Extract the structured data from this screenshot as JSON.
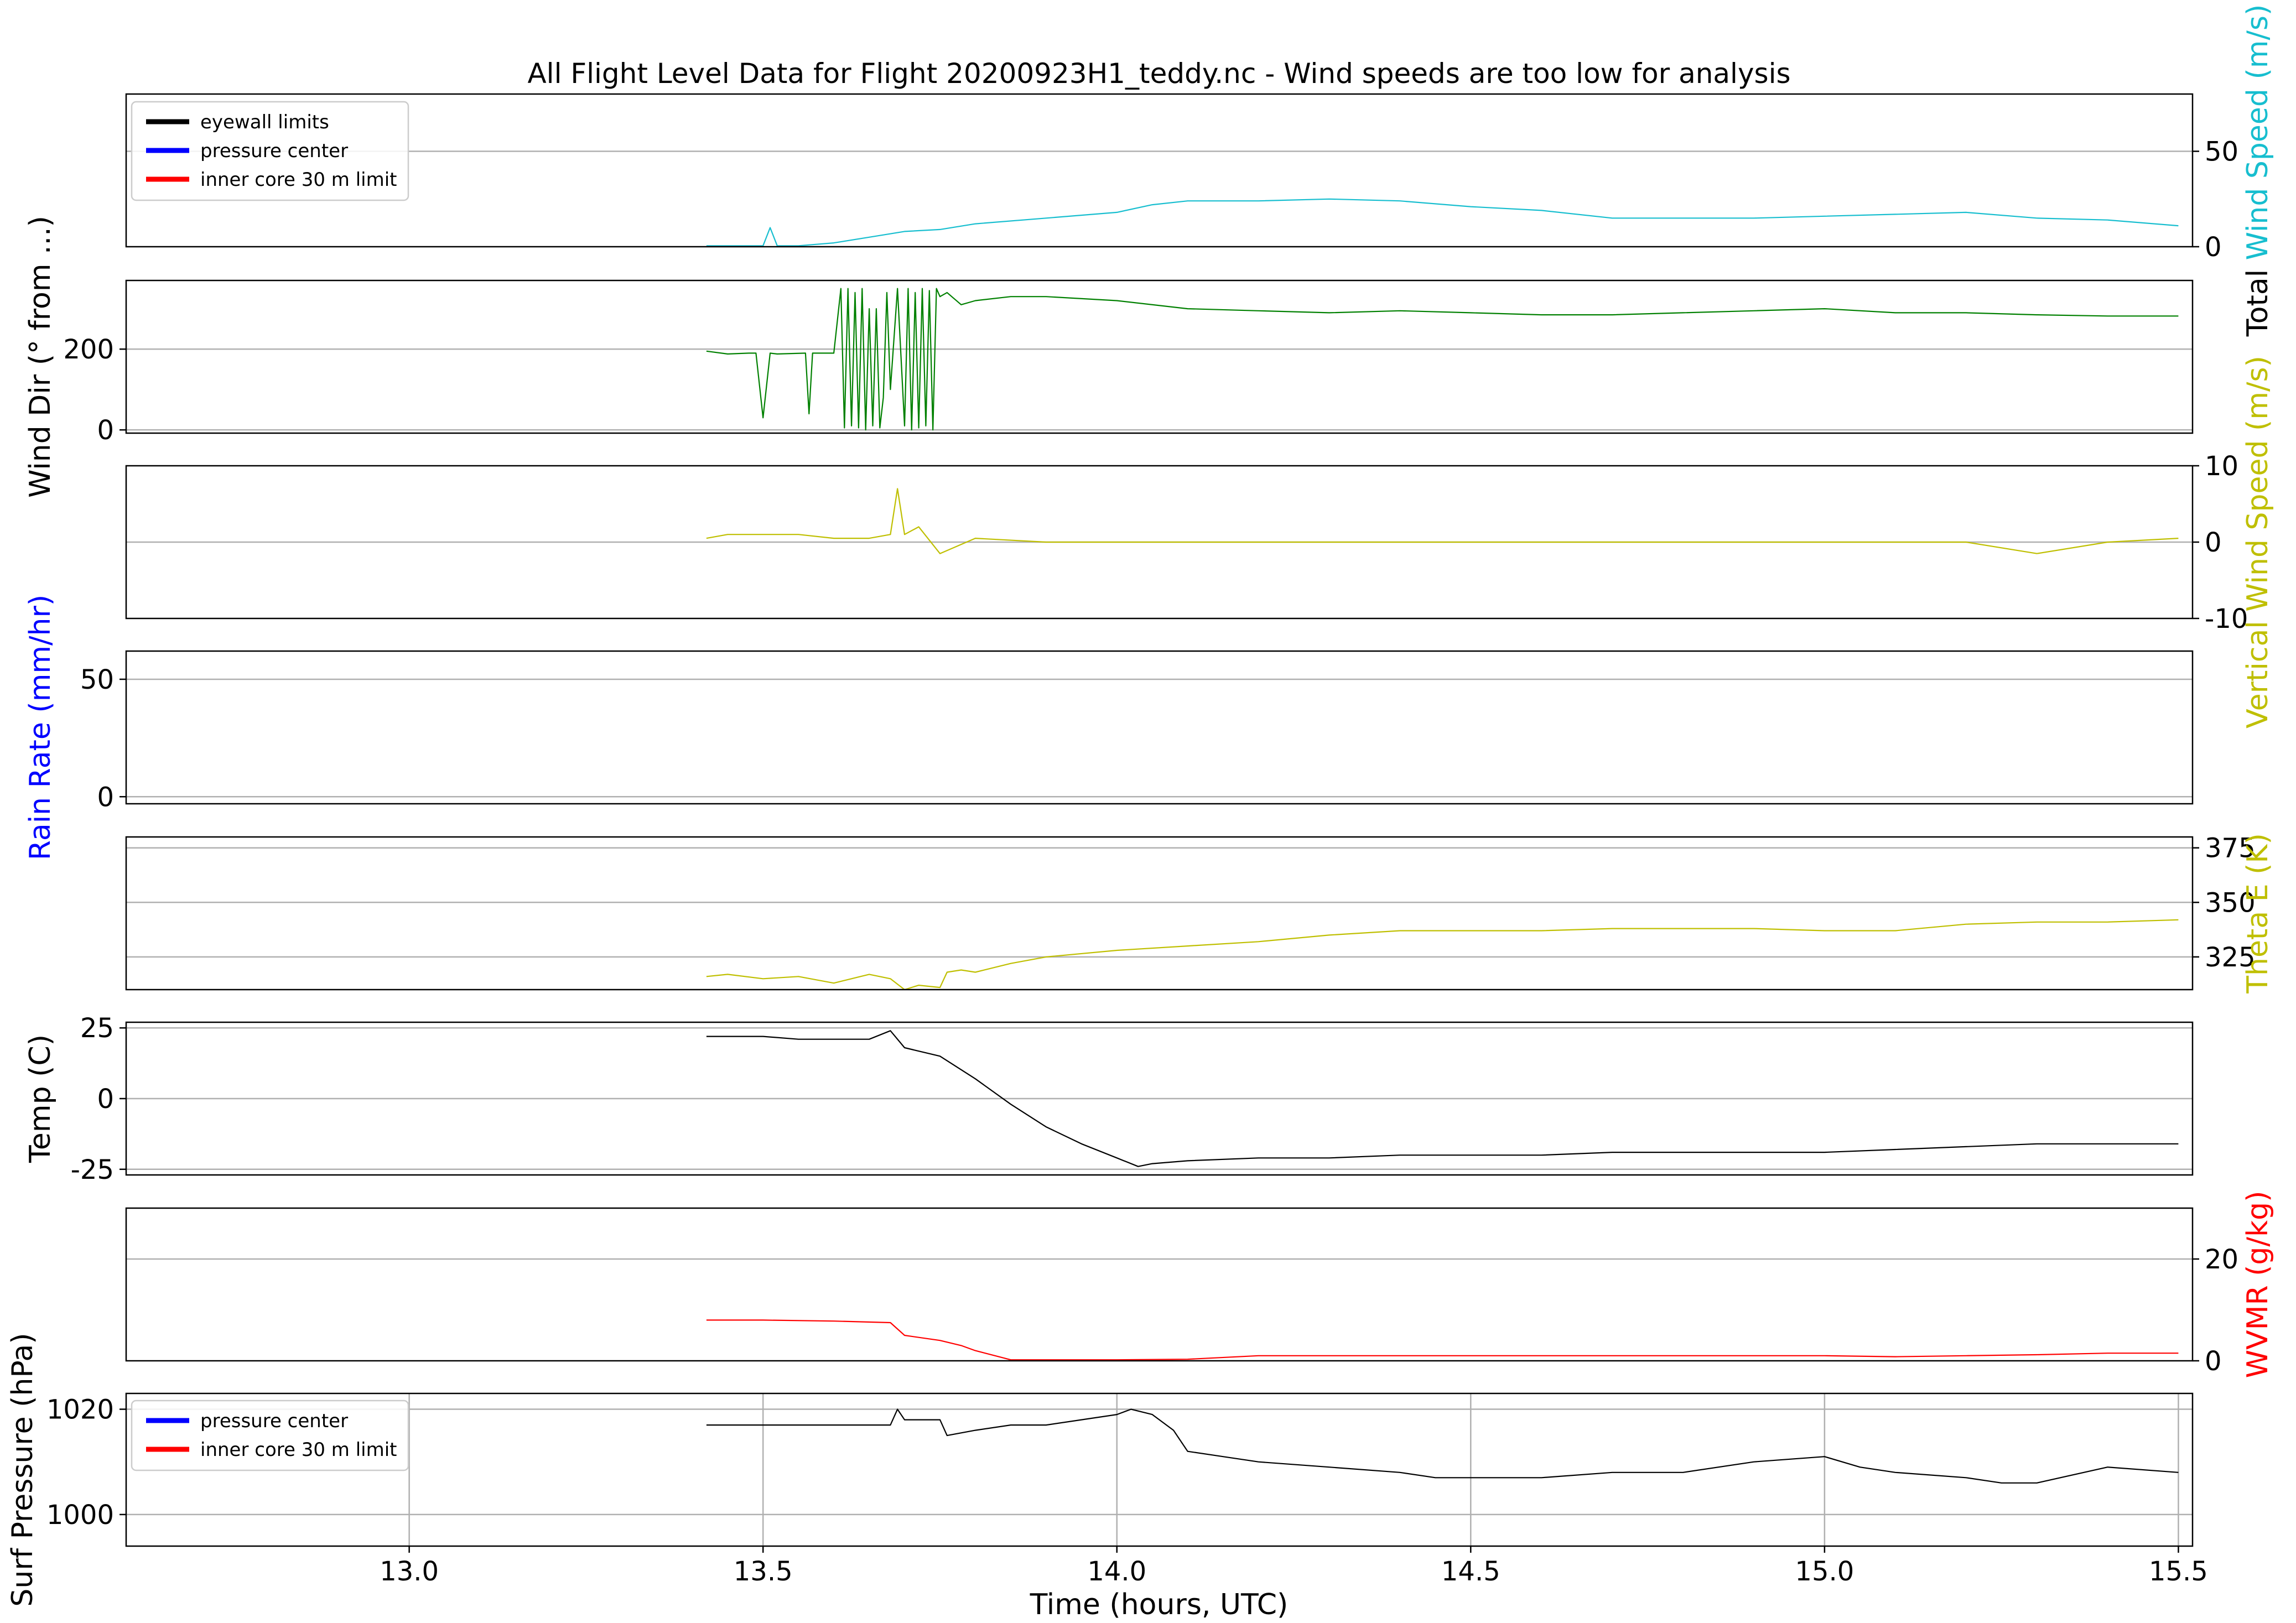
{
  "title": "All Flight Level Data for Flight 20200923H1_teddy.nc - Wind speeds are too low for analysis",
  "colors": {
    "cyan": "#17becf",
    "green": "#008000",
    "olive": "#bfbf00",
    "blue": "#0000ff",
    "red": "#ff0000",
    "black": "#000000",
    "grid": "#b0b0b0"
  },
  "legends": {
    "top": [
      "eyewall limits",
      "pressure center",
      "inner core 30 m limit"
    ],
    "bottom": [
      "pressure center",
      "inner core 30 m limit"
    ]
  },
  "chart_data": [
    {
      "type": "line",
      "ylabel": "Total Wind Speed (m/s)",
      "ylabel_parts": [
        {
          "text": "Total ",
          "color": "#000000"
        },
        {
          "text": "Wind Speed (m/s)",
          "color": "#17becf"
        }
      ],
      "ylabel_side": "right",
      "ylim": [
        0,
        80
      ],
      "yticks": [
        0,
        50
      ],
      "ytick_side": "right",
      "grid_y": [
        50
      ],
      "xlim": [
        12.6,
        15.52
      ],
      "series": [
        {
          "color": "#17becf",
          "x": [
            13.42,
            13.5,
            13.51,
            13.52,
            13.55,
            13.6,
            13.65,
            13.7,
            13.75,
            13.8,
            13.9,
            14.0,
            14.05,
            14.1,
            14.2,
            14.3,
            14.4,
            14.5,
            14.6,
            14.7,
            14.8,
            14.9,
            15.0,
            15.1,
            15.2,
            15.3,
            15.4,
            15.5
          ],
          "y": [
            0.5,
            0.5,
            10,
            0.5,
            0.5,
            2,
            5,
            8,
            9,
            12,
            15,
            18,
            22,
            24,
            24,
            25,
            24,
            21,
            19,
            15,
            15,
            15,
            16,
            17,
            18,
            15,
            14,
            11
          ]
        }
      ]
    },
    {
      "type": "line",
      "ylabel": "Wind Dir (° from ...)",
      "ylabel_side": "left",
      "ylim": [
        -8,
        370
      ],
      "yticks": [
        0,
        200
      ],
      "ytick_side": "left",
      "grid_y": [
        0,
        200
      ],
      "xlim": [
        12.6,
        15.52
      ],
      "series": [
        {
          "color": "#008000",
          "x": [
            13.42,
            13.45,
            13.48,
            13.49,
            13.5,
            13.51,
            13.52,
            13.56,
            13.565,
            13.57,
            13.6,
            13.61,
            13.615,
            13.62,
            13.625,
            13.63,
            13.635,
            13.64,
            13.645,
            13.65,
            13.655,
            13.66,
            13.665,
            13.67,
            13.675,
            13.68,
            13.69,
            13.7,
            13.705,
            13.71,
            13.715,
            13.72,
            13.725,
            13.73,
            13.735,
            13.74,
            13.745,
            13.75,
            13.76,
            13.78,
            13.8,
            13.85,
            13.9,
            14.0,
            14.1,
            14.2,
            14.3,
            14.4,
            14.5,
            14.6,
            14.7,
            14.8,
            14.9,
            15.0,
            15.1,
            15.2,
            15.3,
            15.4,
            15.5
          ],
          "y": [
            195,
            188,
            190,
            190,
            30,
            190,
            188,
            190,
            40,
            190,
            190,
            350,
            5,
            350,
            10,
            340,
            5,
            350,
            0,
            300,
            10,
            300,
            5,
            80,
            340,
            100,
            350,
            10,
            350,
            0,
            340,
            5,
            350,
            10,
            345,
            0,
            350,
            330,
            340,
            310,
            320,
            330,
            330,
            320,
            300,
            295,
            290,
            295,
            290,
            285,
            285,
            290,
            295,
            300,
            290,
            290,
            285,
            282,
            282
          ]
        }
      ]
    },
    {
      "type": "line",
      "ylabel": "Vertical Wind Speed (m/s)",
      "ylabel_parts": [
        {
          "text": "Vertical Wind Speed (m/s)",
          "color": "#bfbf00"
        }
      ],
      "ylabel_side": "right",
      "ylim": [
        -10,
        10
      ],
      "yticks": [
        -10,
        0,
        10
      ],
      "ytick_side": "right",
      "grid_y": [
        0
      ],
      "xlim": [
        12.6,
        15.52
      ],
      "series": [
        {
          "color": "#bfbf00",
          "x": [
            13.42,
            13.45,
            13.5,
            13.55,
            13.6,
            13.65,
            13.68,
            13.69,
            13.7,
            13.72,
            13.75,
            13.8,
            13.9,
            14.0,
            14.2,
            14.4,
            14.6,
            14.8,
            15.0,
            15.2,
            15.3,
            15.4,
            15.5
          ],
          "y": [
            0.5,
            1,
            1,
            1,
            0.5,
            0.5,
            1,
            7,
            1,
            2,
            -1.5,
            0.5,
            0,
            0,
            0,
            0,
            0,
            0,
            0,
            0,
            -1.5,
            0,
            0.5
          ]
        }
      ]
    },
    {
      "type": "line",
      "ylabel": "Rain Rate (mm/hr)",
      "ylabel_parts": [
        {
          "text": "Rain Rate (mm/hr)",
          "color": "#0000ff"
        }
      ],
      "ylabel_side": "left",
      "ylim": [
        -3,
        62
      ],
      "yticks": [
        0,
        50
      ],
      "ytick_side": "left",
      "grid_y": [
        0,
        50
      ],
      "xlim": [
        12.6,
        15.52
      ],
      "series": []
    },
    {
      "type": "line",
      "ylabel": "Theta E (K)",
      "ylabel_parts": [
        {
          "text": "Theta E (K)",
          "color": "#bfbf00"
        }
      ],
      "ylabel_side": "right",
      "ylim": [
        310,
        380
      ],
      "yticks": [
        325,
        350,
        375
      ],
      "ytick_side": "right",
      "grid_y": [
        325,
        350,
        375
      ],
      "xlim": [
        12.6,
        15.52
      ],
      "series": [
        {
          "color": "#bfbf00",
          "x": [
            13.42,
            13.45,
            13.5,
            13.55,
            13.6,
            13.65,
            13.68,
            13.7,
            13.72,
            13.75,
            13.76,
            13.78,
            13.8,
            13.85,
            13.9,
            14.0,
            14.1,
            14.2,
            14.3,
            14.4,
            14.5,
            14.6,
            14.7,
            14.8,
            14.9,
            15.0,
            15.1,
            15.2,
            15.3,
            15.4,
            15.5
          ],
          "y": [
            316,
            317,
            315,
            316,
            313,
            317,
            315,
            310,
            312,
            311,
            318,
            319,
            318,
            322,
            325,
            328,
            330,
            332,
            335,
            337,
            337,
            337,
            338,
            338,
            338,
            337,
            337,
            340,
            341,
            341,
            342
          ]
        }
      ]
    },
    {
      "type": "line",
      "ylabel": "Temp (C)",
      "ylabel_side": "left",
      "ylim": [
        -27,
        27
      ],
      "yticks": [
        -25,
        0,
        25
      ],
      "ytick_side": "left",
      "grid_y": [
        -25,
        0,
        25
      ],
      "xlim": [
        12.6,
        15.52
      ],
      "series": [
        {
          "color": "#000000",
          "x": [
            13.42,
            13.45,
            13.5,
            13.55,
            13.6,
            13.65,
            13.68,
            13.7,
            13.75,
            13.8,
            13.85,
            13.9,
            13.95,
            14.0,
            14.03,
            14.05,
            14.1,
            14.2,
            14.3,
            14.4,
            14.5,
            14.6,
            14.7,
            14.8,
            14.9,
            15.0,
            15.1,
            15.2,
            15.3,
            15.4,
            15.5
          ],
          "y": [
            22,
            22,
            22,
            21,
            21,
            21,
            24,
            18,
            15,
            7,
            -2,
            -10,
            -16,
            -21,
            -24,
            -23,
            -22,
            -21,
            -21,
            -20,
            -20,
            -20,
            -19,
            -19,
            -19,
            -19,
            -18,
            -17,
            -16,
            -16,
            -16
          ]
        }
      ]
    },
    {
      "type": "line",
      "ylabel": "WVMR (g/kg)",
      "ylabel_parts": [
        {
          "text": "WVMR (g/kg)",
          "color": "#ff0000"
        }
      ],
      "ylabel_side": "right",
      "ylim": [
        0,
        30
      ],
      "yticks": [
        0,
        20
      ],
      "ytick_side": "right",
      "grid_y": [
        20
      ],
      "xlim": [
        12.6,
        15.52
      ],
      "series": [
        {
          "color": "#ff0000",
          "x": [
            13.42,
            13.5,
            13.6,
            13.68,
            13.7,
            13.75,
            13.78,
            13.8,
            13.85,
            13.9,
            14.0,
            14.1,
            14.2,
            14.3,
            14.4,
            14.5,
            14.6,
            14.7,
            14.8,
            14.9,
            15.0,
            15.1,
            15.2,
            15.3,
            15.4,
            15.5
          ],
          "y": [
            8,
            8,
            7.8,
            7.5,
            5,
            4,
            3,
            2,
            0.2,
            0.2,
            0.2,
            0.3,
            1,
            1,
            1,
            1,
            1,
            1,
            1,
            1,
            1,
            0.8,
            1,
            1.2,
            1.5,
            1.5
          ]
        }
      ]
    },
    {
      "type": "line",
      "ylabel": "Surf Pressure (hPa)",
      "ylabel_side": "left",
      "ylim": [
        994,
        1023
      ],
      "yticks": [
        1000,
        1020
      ],
      "ytick_side": "left",
      "grid_y": [
        1000,
        1020
      ],
      "grid_x": true,
      "xlim": [
        12.6,
        15.52
      ],
      "xticks": [
        13.0,
        13.5,
        14.0,
        14.5,
        15.0,
        15.5
      ],
      "xtick_labels": [
        "13.0",
        "13.5",
        "14.0",
        "14.5",
        "15.0",
        "15.5"
      ],
      "xlabel": "Time (hours, UTC)",
      "series": [
        {
          "color": "#000000",
          "x": [
            13.42,
            13.5,
            13.6,
            13.68,
            13.69,
            13.7,
            13.75,
            13.76,
            13.8,
            13.85,
            13.9,
            13.95,
            14.0,
            14.02,
            14.05,
            14.08,
            14.1,
            14.15,
            14.2,
            14.3,
            14.4,
            14.45,
            14.5,
            14.6,
            14.7,
            14.8,
            14.9,
            15.0,
            15.05,
            15.1,
            15.2,
            15.25,
            15.3,
            15.4,
            15.5
          ],
          "y": [
            1017,
            1017,
            1017,
            1017,
            1020,
            1018,
            1018,
            1015,
            1016,
            1017,
            1017,
            1018,
            1019,
            1020,
            1019,
            1016,
            1012,
            1011,
            1010,
            1009,
            1008,
            1007,
            1007,
            1007,
            1008,
            1008,
            1010,
            1011,
            1009,
            1008,
            1007,
            1006,
            1006,
            1009,
            1008
          ]
        }
      ]
    }
  ]
}
